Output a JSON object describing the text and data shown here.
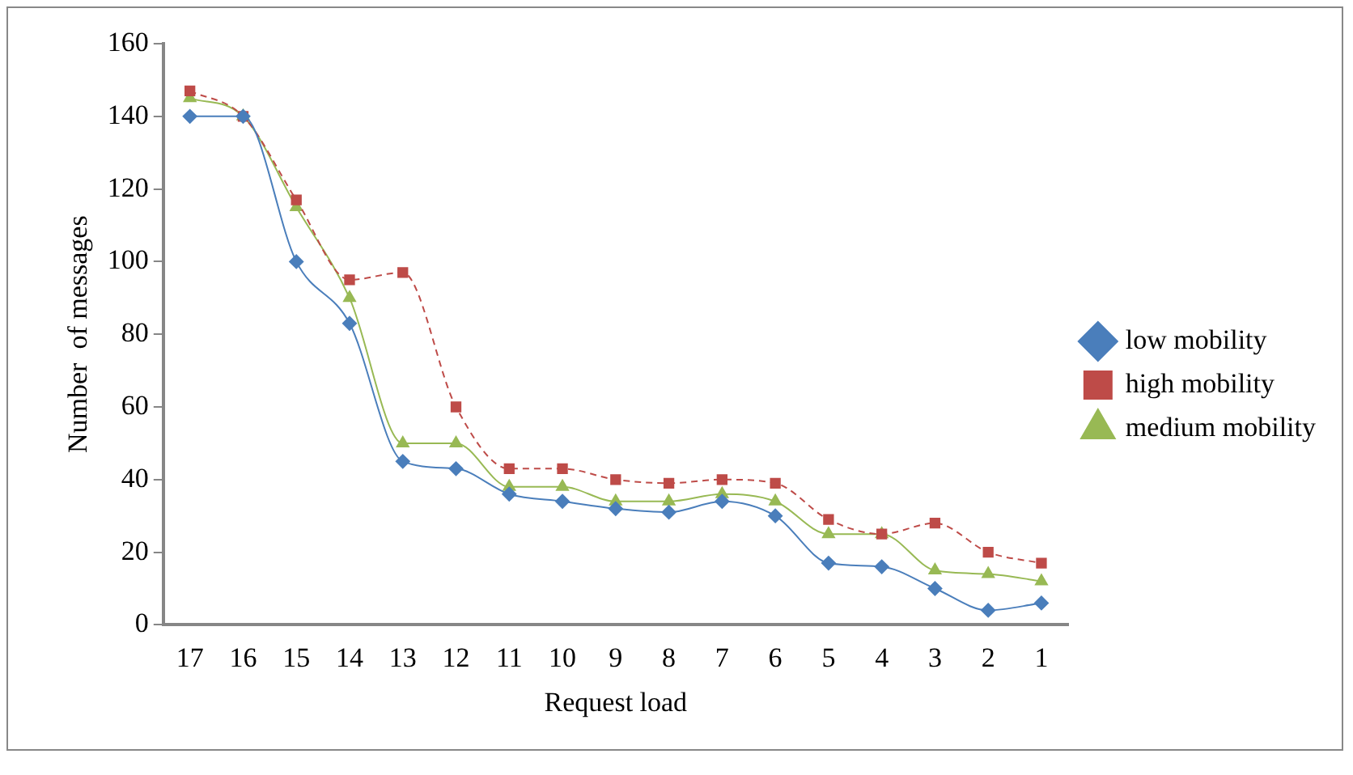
{
  "chart_data": {
    "type": "line",
    "xlabel": "Request load",
    "ylabel": "Number  of messages",
    "categories": [
      "17",
      "16",
      "15",
      "14",
      "13",
      "12",
      "11",
      "10",
      "9",
      "8",
      "7",
      "6",
      "5",
      "4",
      "3",
      "2",
      "1"
    ],
    "series": [
      {
        "name": "low mobility",
        "color": "#4a7ebb",
        "marker": "diamond",
        "line_style": "solid",
        "values": [
          140,
          140,
          100,
          83,
          45,
          43,
          36,
          34,
          32,
          31,
          34,
          30,
          17,
          16,
          10,
          4,
          6
        ]
      },
      {
        "name": "high mobility",
        "color": "#be4b48",
        "marker": "square",
        "line_style": "dashed",
        "values": [
          147,
          140,
          117,
          95,
          97,
          60,
          43,
          43,
          40,
          39,
          40,
          39,
          29,
          25,
          28,
          20,
          17
        ]
      },
      {
        "name": "medium mobility",
        "color": "#98b954",
        "marker": "triangle",
        "line_style": "solid",
        "values": [
          145,
          140,
          115,
          90,
          50,
          50,
          38,
          38,
          34,
          34,
          36,
          34,
          25,
          25,
          15,
          14,
          12
        ]
      }
    ],
    "ylim": [
      0,
      160
    ],
    "yticks": [
      0,
      20,
      40,
      60,
      80,
      100,
      120,
      140,
      160
    ],
    "grid": false,
    "legend": "right"
  }
}
